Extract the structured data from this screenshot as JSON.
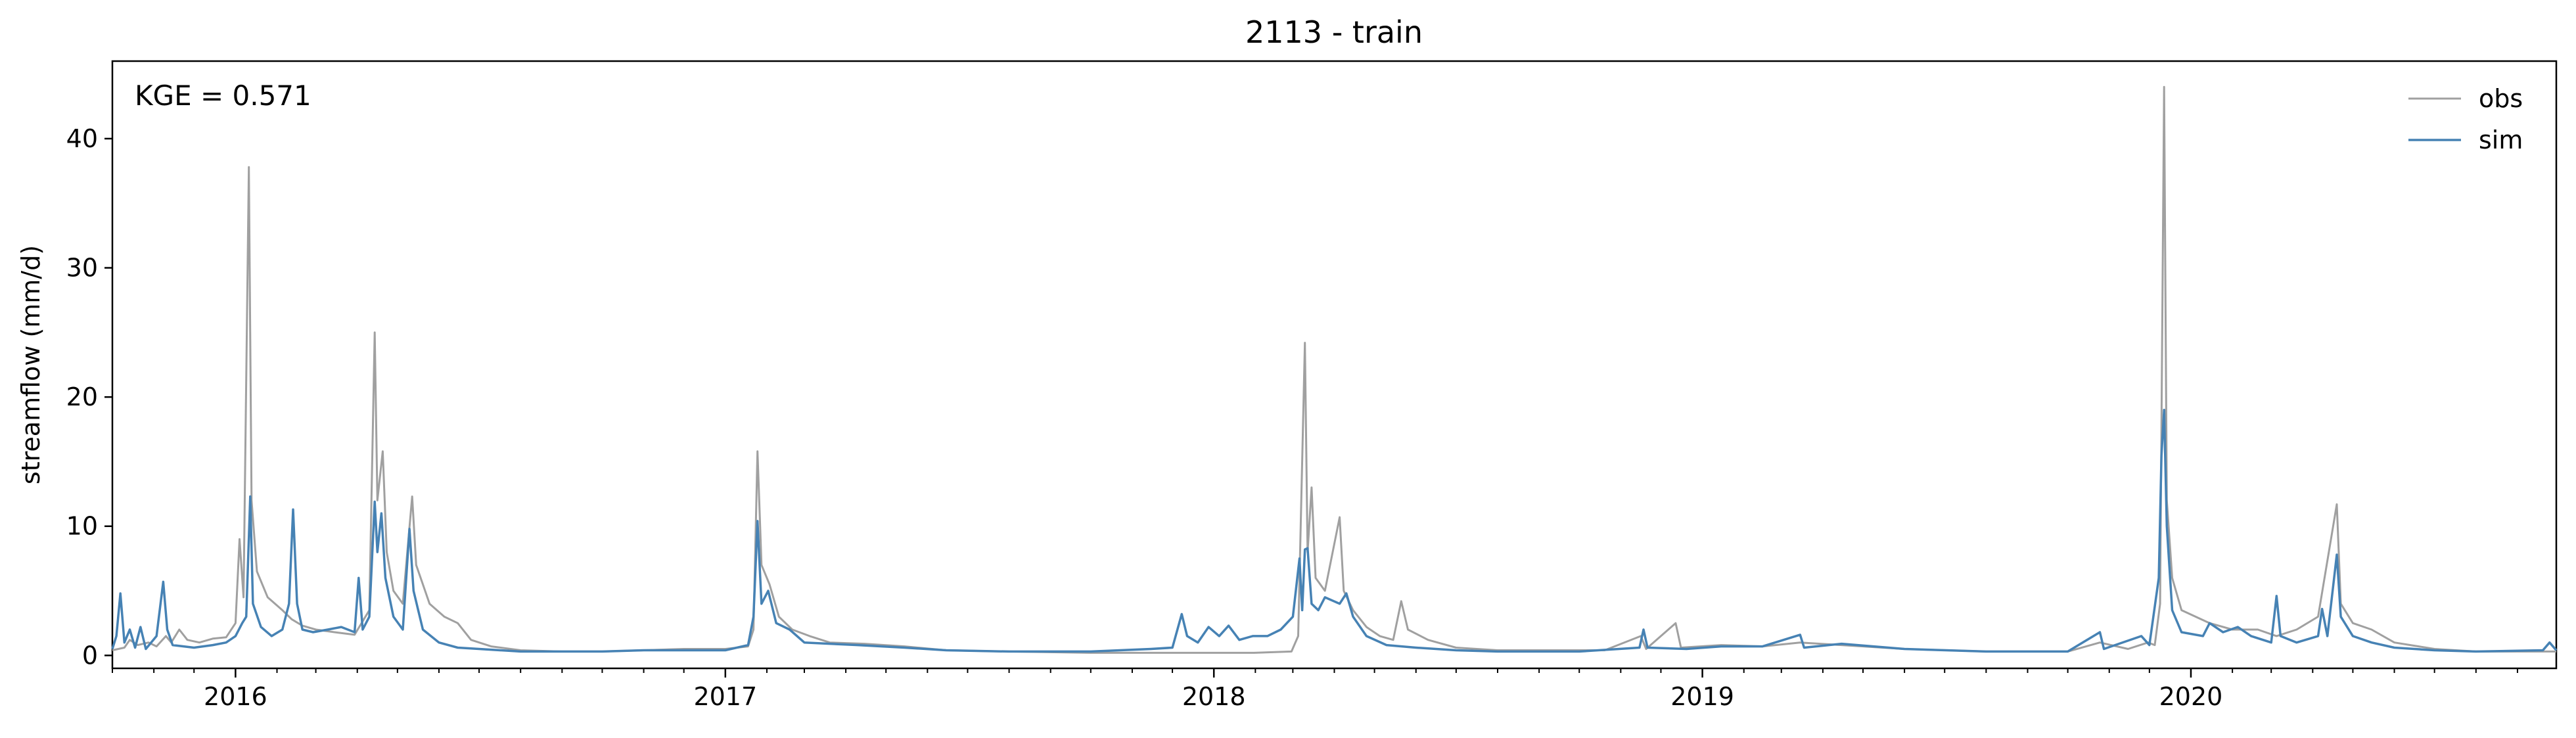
{
  "chart_data": {
    "type": "line",
    "title": "2113 - train",
    "xlabel": "",
    "ylabel": "streamflow (mm/d)",
    "annotation": "KGE = 0.571",
    "xlim": [
      "2015-10-01",
      "2020-09-30"
    ],
    "ylim": [
      -1,
      46
    ],
    "x_ticks": [
      "2016",
      "2017",
      "2018",
      "2019",
      "2020"
    ],
    "y_ticks": [
      0,
      10,
      20,
      30,
      40
    ],
    "legend_position": "top-right",
    "grid": false,
    "series": [
      {
        "name": "obs",
        "color": "#a0a0a0",
        "points": [
          [
            "2015-10-01",
            0.4
          ],
          [
            "2015-10-10",
            0.6
          ],
          [
            "2015-10-14",
            1.2
          ],
          [
            "2015-10-20",
            0.8
          ],
          [
            "2015-10-28",
            1.0
          ],
          [
            "2015-11-03",
            0.7
          ],
          [
            "2015-11-10",
            1.5
          ],
          [
            "2015-11-14",
            1.0
          ],
          [
            "2015-11-20",
            2.0
          ],
          [
            "2015-11-26",
            1.2
          ],
          [
            "2015-12-05",
            1.0
          ],
          [
            "2015-12-15",
            1.3
          ],
          [
            "2015-12-25",
            1.4
          ],
          [
            "2016-01-01",
            2.5
          ],
          [
            "2016-01-04",
            9.0
          ],
          [
            "2016-01-07",
            4.5
          ],
          [
            "2016-01-11",
            37.8
          ],
          [
            "2016-01-13",
            12.0
          ],
          [
            "2016-01-17",
            6.5
          ],
          [
            "2016-01-25",
            4.5
          ],
          [
            "2016-02-05",
            3.5
          ],
          [
            "2016-02-12",
            2.8
          ],
          [
            "2016-02-20",
            2.3
          ],
          [
            "2016-03-01",
            2.0
          ],
          [
            "2016-03-15",
            1.8
          ],
          [
            "2016-03-30",
            1.6
          ],
          [
            "2016-04-10",
            3.5
          ],
          [
            "2016-04-14",
            25.0
          ],
          [
            "2016-04-16",
            12.0
          ],
          [
            "2016-04-20",
            15.8
          ],
          [
            "2016-04-23",
            8.0
          ],
          [
            "2016-04-28",
            5.0
          ],
          [
            "2016-05-05",
            4.0
          ],
          [
            "2016-05-12",
            12.3
          ],
          [
            "2016-05-15",
            7.0
          ],
          [
            "2016-05-25",
            4.0
          ],
          [
            "2016-06-05",
            3.0
          ],
          [
            "2016-06-15",
            2.5
          ],
          [
            "2016-06-25",
            1.2
          ],
          [
            "2016-07-10",
            0.7
          ],
          [
            "2016-08-01",
            0.4
          ],
          [
            "2016-09-01",
            0.3
          ],
          [
            "2016-10-01",
            0.3
          ],
          [
            "2016-11-01",
            0.4
          ],
          [
            "2016-12-01",
            0.5
          ],
          [
            "2017-01-01",
            0.5
          ],
          [
            "2017-01-18",
            0.7
          ],
          [
            "2017-01-22",
            2.0
          ],
          [
            "2017-01-25",
            15.8
          ],
          [
            "2017-01-28",
            7.0
          ],
          [
            "2017-02-03",
            5.5
          ],
          [
            "2017-02-10",
            3.0
          ],
          [
            "2017-02-20",
            2.0
          ],
          [
            "2017-03-05",
            1.5
          ],
          [
            "2017-03-20",
            1.0
          ],
          [
            "2017-04-15",
            0.9
          ],
          [
            "2017-05-15",
            0.7
          ],
          [
            "2017-06-15",
            0.4
          ],
          [
            "2017-08-01",
            0.3
          ],
          [
            "2017-10-01",
            0.2
          ],
          [
            "2017-12-01",
            0.2
          ],
          [
            "2017-12-31",
            0.2
          ],
          [
            "2018-01-31",
            0.2
          ],
          [
            "2018-02-28",
            0.3
          ],
          [
            "2018-03-05",
            1.5
          ],
          [
            "2018-03-10",
            24.2
          ],
          [
            "2018-03-12",
            8.0
          ],
          [
            "2018-03-15",
            13.0
          ],
          [
            "2018-03-18",
            6.0
          ],
          [
            "2018-03-25",
            5.0
          ],
          [
            "2018-04-05",
            10.7
          ],
          [
            "2018-04-08",
            5.0
          ],
          [
            "2018-04-15",
            3.5
          ],
          [
            "2018-04-25",
            2.2
          ],
          [
            "2018-05-05",
            1.5
          ],
          [
            "2018-05-15",
            1.2
          ],
          [
            "2018-05-21",
            4.2
          ],
          [
            "2018-05-26",
            2.0
          ],
          [
            "2018-06-10",
            1.2
          ],
          [
            "2018-07-01",
            0.6
          ],
          [
            "2018-08-01",
            0.4
          ],
          [
            "2018-09-15",
            0.4
          ],
          [
            "2018-10-20",
            0.4
          ],
          [
            "2018-11-16",
            1.5
          ],
          [
            "2018-11-20",
            0.5
          ],
          [
            "2018-12-12",
            2.5
          ],
          [
            "2018-12-16",
            0.6
          ],
          [
            "2019-01-15",
            0.8
          ],
          [
            "2019-02-15",
            0.7
          ],
          [
            "2019-03-15",
            1.0
          ],
          [
            "2019-04-15",
            0.8
          ],
          [
            "2019-06-01",
            0.5
          ],
          [
            "2019-08-01",
            0.3
          ],
          [
            "2019-10-01",
            0.3
          ],
          [
            "2019-10-25",
            1.0
          ],
          [
            "2019-11-15",
            0.5
          ],
          [
            "2019-11-30",
            1.0
          ],
          [
            "2019-12-05",
            0.8
          ],
          [
            "2019-12-09",
            4.0
          ],
          [
            "2019-12-12",
            44.0
          ],
          [
            "2019-12-14",
            12.0
          ],
          [
            "2019-12-18",
            6.0
          ],
          [
            "2019-12-25",
            3.5
          ],
          [
            "2020-01-15",
            2.5
          ],
          [
            "2020-02-01",
            2.0
          ],
          [
            "2020-02-20",
            2.0
          ],
          [
            "2020-03-05",
            1.5
          ],
          [
            "2020-03-20",
            2.0
          ],
          [
            "2020-04-05",
            3.0
          ],
          [
            "2020-04-19",
            11.7
          ],
          [
            "2020-04-22",
            4.0
          ],
          [
            "2020-05-01",
            2.5
          ],
          [
            "2020-05-15",
            2.0
          ],
          [
            "2020-06-01",
            1.0
          ],
          [
            "2020-07-01",
            0.5
          ],
          [
            "2020-08-01",
            0.3
          ],
          [
            "2020-09-30",
            0.3
          ]
        ]
      },
      {
        "name": "sim",
        "color": "#4682b4",
        "points": [
          [
            "2015-10-01",
            0.5
          ],
          [
            "2015-10-04",
            1.5
          ],
          [
            "2015-10-07",
            4.8
          ],
          [
            "2015-10-10",
            1.0
          ],
          [
            "2015-10-14",
            2.0
          ],
          [
            "2015-10-18",
            0.6
          ],
          [
            "2015-10-22",
            2.2
          ],
          [
            "2015-10-26",
            0.5
          ],
          [
            "2015-11-03",
            1.5
          ],
          [
            "2015-11-08",
            5.7
          ],
          [
            "2015-11-11",
            2.0
          ],
          [
            "2015-11-15",
            0.8
          ],
          [
            "2015-12-01",
            0.6
          ],
          [
            "2015-12-15",
            0.8
          ],
          [
            "2015-12-25",
            1.0
          ],
          [
            "2016-01-01",
            1.5
          ],
          [
            "2016-01-06",
            2.5
          ],
          [
            "2016-01-09",
            3.0
          ],
          [
            "2016-01-12",
            12.3
          ],
          [
            "2016-01-14",
            4.0
          ],
          [
            "2016-01-20",
            2.2
          ],
          [
            "2016-01-28",
            1.5
          ],
          [
            "2016-02-05",
            2.0
          ],
          [
            "2016-02-10",
            4.0
          ],
          [
            "2016-02-13",
            11.3
          ],
          [
            "2016-02-16",
            4.0
          ],
          [
            "2016-02-20",
            2.0
          ],
          [
            "2016-02-28",
            1.8
          ],
          [
            "2016-03-10",
            2.0
          ],
          [
            "2016-03-20",
            2.2
          ],
          [
            "2016-03-30",
            1.8
          ],
          [
            "2016-04-02",
            6.0
          ],
          [
            "2016-04-05",
            2.0
          ],
          [
            "2016-04-10",
            3.0
          ],
          [
            "2016-04-14",
            11.9
          ],
          [
            "2016-04-16",
            8.0
          ],
          [
            "2016-04-19",
            11.0
          ],
          [
            "2016-04-22",
            6.0
          ],
          [
            "2016-04-28",
            3.0
          ],
          [
            "2016-05-05",
            2.0
          ],
          [
            "2016-05-10",
            9.8
          ],
          [
            "2016-05-13",
            5.0
          ],
          [
            "2016-05-20",
            2.0
          ],
          [
            "2016-06-01",
            1.0
          ],
          [
            "2016-06-15",
            0.6
          ],
          [
            "2016-07-01",
            0.5
          ],
          [
            "2016-08-01",
            0.3
          ],
          [
            "2016-09-01",
            0.3
          ],
          [
            "2016-10-01",
            0.3
          ],
          [
            "2016-11-01",
            0.4
          ],
          [
            "2016-12-01",
            0.4
          ],
          [
            "2017-01-01",
            0.4
          ],
          [
            "2017-01-18",
            0.8
          ],
          [
            "2017-01-22",
            3.0
          ],
          [
            "2017-01-25",
            10.4
          ],
          [
            "2017-01-28",
            4.0
          ],
          [
            "2017-02-02",
            5.0
          ],
          [
            "2017-02-08",
            2.5
          ],
          [
            "2017-02-18",
            2.0
          ],
          [
            "2017-03-01",
            1.0
          ],
          [
            "2017-03-20",
            0.9
          ],
          [
            "2017-04-10",
            0.8
          ],
          [
            "2017-05-15",
            0.6
          ],
          [
            "2017-06-15",
            0.4
          ],
          [
            "2017-08-01",
            0.3
          ],
          [
            "2017-10-01",
            0.3
          ],
          [
            "2017-11-15",
            0.5
          ],
          [
            "2017-12-01",
            0.6
          ],
          [
            "2017-12-08",
            3.2
          ],
          [
            "2017-12-12",
            1.5
          ],
          [
            "2017-12-20",
            1.0
          ],
          [
            "2017-12-28",
            2.2
          ],
          [
            "2018-01-05",
            1.5
          ],
          [
            "2018-01-12",
            2.3
          ],
          [
            "2018-01-20",
            1.2
          ],
          [
            "2018-01-30",
            1.5
          ],
          [
            "2018-02-10",
            1.5
          ],
          [
            "2018-02-20",
            2.0
          ],
          [
            "2018-03-01",
            3.0
          ],
          [
            "2018-03-06",
            7.5
          ],
          [
            "2018-03-08",
            3.5
          ],
          [
            "2018-03-10",
            8.2
          ],
          [
            "2018-03-12",
            8.3
          ],
          [
            "2018-03-15",
            4.0
          ],
          [
            "2018-03-20",
            3.5
          ],
          [
            "2018-03-25",
            4.5
          ],
          [
            "2018-04-05",
            4.0
          ],
          [
            "2018-04-10",
            4.8
          ],
          [
            "2018-04-15",
            3.0
          ],
          [
            "2018-04-25",
            1.5
          ],
          [
            "2018-05-10",
            0.8
          ],
          [
            "2018-06-01",
            0.6
          ],
          [
            "2018-07-01",
            0.4
          ],
          [
            "2018-08-01",
            0.3
          ],
          [
            "2018-10-01",
            0.3
          ],
          [
            "2018-11-15",
            0.6
          ],
          [
            "2018-11-18",
            2.0
          ],
          [
            "2018-11-21",
            0.6
          ],
          [
            "2018-12-20",
            0.5
          ],
          [
            "2019-01-15",
            0.7
          ],
          [
            "2019-02-15",
            0.7
          ],
          [
            "2019-03-15",
            1.6
          ],
          [
            "2019-03-18",
            0.6
          ],
          [
            "2019-04-15",
            0.9
          ],
          [
            "2019-06-01",
            0.5
          ],
          [
            "2019-08-01",
            0.3
          ],
          [
            "2019-10-01",
            0.3
          ],
          [
            "2019-10-25",
            1.8
          ],
          [
            "2019-10-28",
            0.5
          ],
          [
            "2019-11-25",
            1.5
          ],
          [
            "2019-12-01",
            0.8
          ],
          [
            "2019-12-08",
            6.0
          ],
          [
            "2019-12-10",
            15.5
          ],
          [
            "2019-12-12",
            19.0
          ],
          [
            "2019-12-14",
            10.0
          ],
          [
            "2019-12-18",
            3.5
          ],
          [
            "2019-12-25",
            1.8
          ],
          [
            "2020-01-10",
            1.5
          ],
          [
            "2020-01-15",
            2.5
          ],
          [
            "2020-01-25",
            1.8
          ],
          [
            "2020-02-05",
            2.2
          ],
          [
            "2020-02-15",
            1.5
          ],
          [
            "2020-03-01",
            1.0
          ],
          [
            "2020-03-05",
            4.6
          ],
          [
            "2020-03-08",
            1.5
          ],
          [
            "2020-03-20",
            1.0
          ],
          [
            "2020-04-05",
            1.5
          ],
          [
            "2020-04-08",
            3.6
          ],
          [
            "2020-04-12",
            1.5
          ],
          [
            "2020-04-19",
            7.8
          ],
          [
            "2020-04-22",
            3.0
          ],
          [
            "2020-05-01",
            1.5
          ],
          [
            "2020-05-15",
            1.0
          ],
          [
            "2020-06-01",
            0.6
          ],
          [
            "2020-07-01",
            0.4
          ],
          [
            "2020-08-01",
            0.3
          ],
          [
            "2020-09-20",
            0.4
          ],
          [
            "2020-09-25",
            1.0
          ],
          [
            "2020-09-30",
            0.4
          ]
        ]
      }
    ]
  }
}
